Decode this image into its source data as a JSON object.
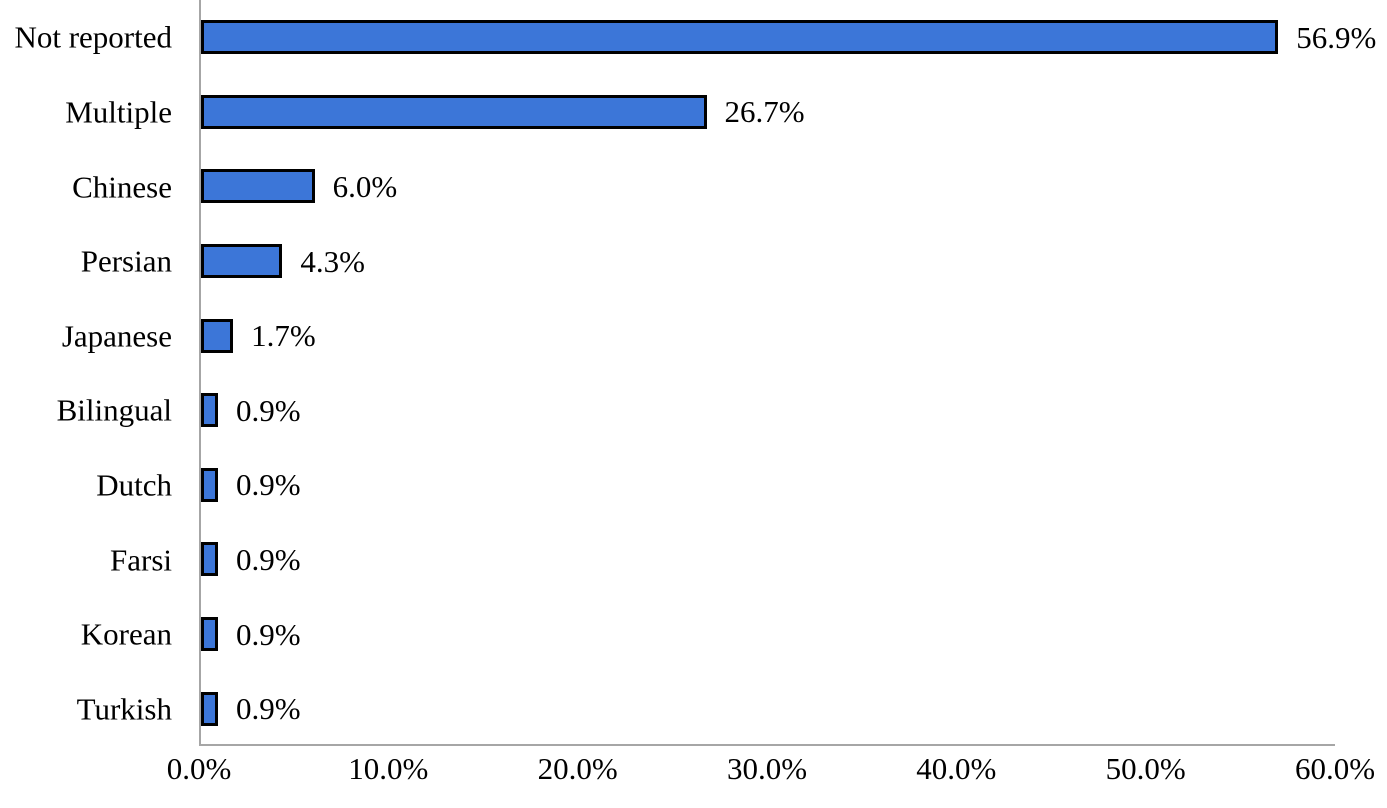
{
  "chart_data": {
    "type": "bar",
    "orientation": "horizontal",
    "categories": [
      "Not reported",
      "Multiple",
      "Chinese",
      "Persian",
      "Japanese",
      "Bilingual",
      "Dutch",
      "Farsi",
      "Korean",
      "Turkish"
    ],
    "values": [
      56.9,
      26.7,
      6.0,
      4.3,
      1.7,
      0.9,
      0.9,
      0.9,
      0.9,
      0.9
    ],
    "value_labels": [
      "56.9%",
      "26.7%",
      "6.0%",
      "4.3%",
      "1.7%",
      "0.9%",
      "0.9%",
      "0.9%",
      "0.9%",
      "0.9%"
    ],
    "x_tick_labels": [
      "0.0%",
      "10.0%",
      "20.0%",
      "30.0%",
      "40.0%",
      "50.0%",
      "60.0%"
    ],
    "xlim": [
      0,
      60
    ],
    "grid": "off",
    "legend": "none",
    "bar_fill_color": "#3C76D8",
    "bar_border_color": "#000000",
    "axis_line_color": "#A6A6A6",
    "text_color": "#000000"
  }
}
